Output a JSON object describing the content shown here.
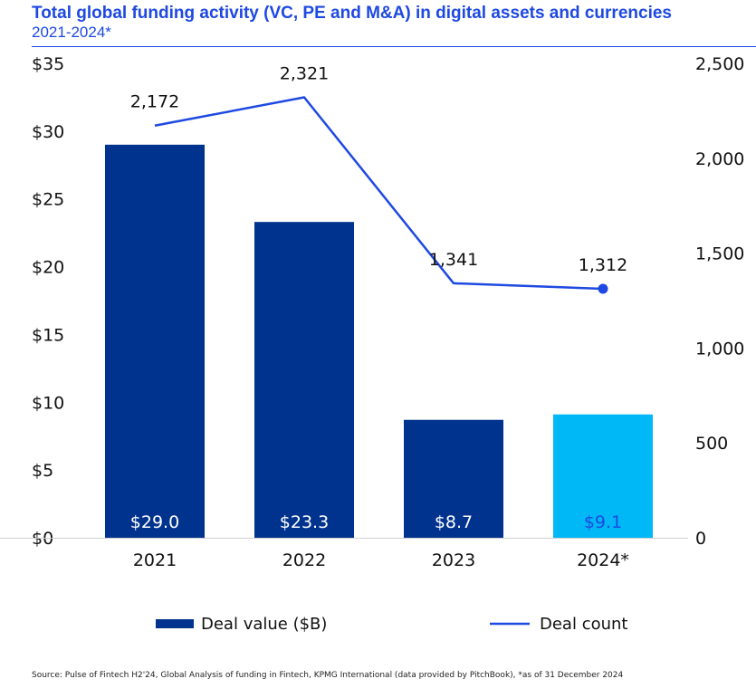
{
  "colors": {
    "title": "#1E49E2",
    "bar": "#00338D",
    "bar_highlight": "#00B8F5",
    "line": "#1E49E2",
    "bar_label_light": "#FFFFFF",
    "bar_label_dark": "#1E49E2"
  },
  "chart_data": {
    "type": "bar+line",
    "title": "Total global funding activity (VC, PE and M&A) in digital assets and currencies",
    "subtitle": "2021-2024*",
    "categories": [
      "2021",
      "2022",
      "2023",
      "2024*"
    ],
    "series": [
      {
        "name": "Deal value ($B)",
        "type": "bar",
        "axis": "left",
        "values": [
          29.0,
          23.3,
          8.7,
          9.1
        ],
        "labels": [
          "$29.0",
          "$23.3",
          "$8.7",
          "$9.1"
        ],
        "highlight_index": 3
      },
      {
        "name": "Deal count",
        "type": "line",
        "axis": "right",
        "values": [
          2172,
          2321,
          1341,
          1312
        ],
        "labels": [
          "2,172",
          "2,321",
          "1,341",
          "1,312"
        ],
        "marker_index": 3
      }
    ],
    "y_left": {
      "min": 0,
      "max": 35,
      "ticks": [
        "$0",
        "$5",
        "$10",
        "$15",
        "$20",
        "$25",
        "$30",
        "$35"
      ]
    },
    "y_right": {
      "min": 0,
      "max": 2500,
      "ticks": [
        "0",
        "500",
        "1,000",
        "1,500",
        "2,000",
        "2,500"
      ]
    },
    "legend": {
      "position": "bottom",
      "items": [
        "Deal value ($B)",
        "Deal count"
      ]
    },
    "source": "Source: Pulse of Fintech H2'24, Global Analysis of funding in Fintech, KPMG International (data provided by PitchBook), *as of 31 December 2024"
  }
}
